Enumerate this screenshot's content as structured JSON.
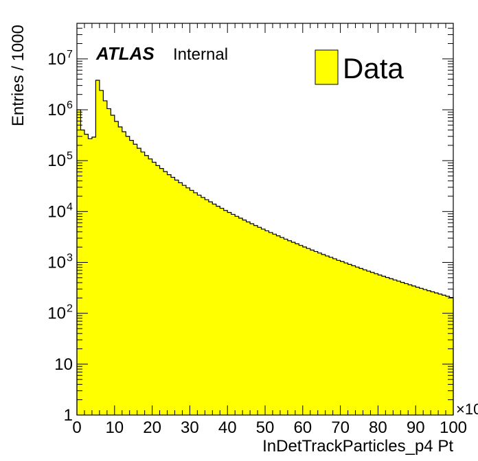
{
  "chart_data": {
    "type": "bar",
    "style": "histogram-step",
    "title": "",
    "xlabel": "InDetTrackParticles_p4 Pt",
    "ylabel": "Entries / 1000",
    "x_multiplier_label": "×10",
    "xlim": [
      0,
      100
    ],
    "ylim": [
      1,
      50000000
    ],
    "yscale": "log",
    "grid": false,
    "legend_position": "top-right",
    "x_tick_labels": [
      "0",
      "10",
      "20",
      "30",
      "40",
      "50",
      "60",
      "70",
      "80",
      "90",
      "100"
    ],
    "y_tick_labels": [
      {
        "value": 1,
        "base": "1",
        "exp": ""
      },
      {
        "value": 10,
        "base": "10",
        "exp": ""
      },
      {
        "value": 100,
        "base": "10",
        "exp": "2"
      },
      {
        "value": 1000,
        "base": "10",
        "exp": "3"
      },
      {
        "value": 10000,
        "base": "10",
        "exp": "4"
      },
      {
        "value": 100000,
        "base": "10",
        "exp": "5"
      },
      {
        "value": 1000000,
        "base": "10",
        "exp": "6"
      },
      {
        "value": 10000000,
        "base": "10",
        "exp": "7"
      }
    ],
    "atlas_label": "ATLAS",
    "atlas_sublabel": "Internal",
    "fill_color": "#ffff00",
    "series": [
      {
        "name": "Data",
        "bin_width": 1,
        "x_start": 0,
        "values": [
          1000000,
          400000,
          330000,
          270000,
          290000,
          3800000,
          2400000,
          1500000,
          1050000,
          780000,
          590000,
          460000,
          370000,
          300000,
          250000,
          210000,
          175000,
          148000,
          126000,
          108000,
          93000,
          80000,
          70000,
          61000,
          53000,
          47000,
          41500,
          36800,
          32700,
          29200,
          26100,
          23400,
          21000,
          18900,
          17100,
          15500,
          14000,
          12700,
          11600,
          10500,
          9600,
          8800,
          8050,
          7400,
          6800,
          6250,
          5750,
          5300,
          4900,
          4520,
          4180,
          3870,
          3590,
          3330,
          3090,
          2870,
          2670,
          2490,
          2320,
          2160,
          2010,
          1880,
          1750,
          1640,
          1530,
          1430,
          1340,
          1260,
          1180,
          1100,
          1040,
          975,
          915,
          860,
          810,
          760,
          715,
          675,
          635,
          600,
          565,
          535,
          505,
          478,
          452,
          428,
          405,
          383,
          363,
          344,
          326,
          309,
          293,
          278,
          264,
          251,
          239,
          227,
          216,
          205
        ]
      }
    ]
  }
}
